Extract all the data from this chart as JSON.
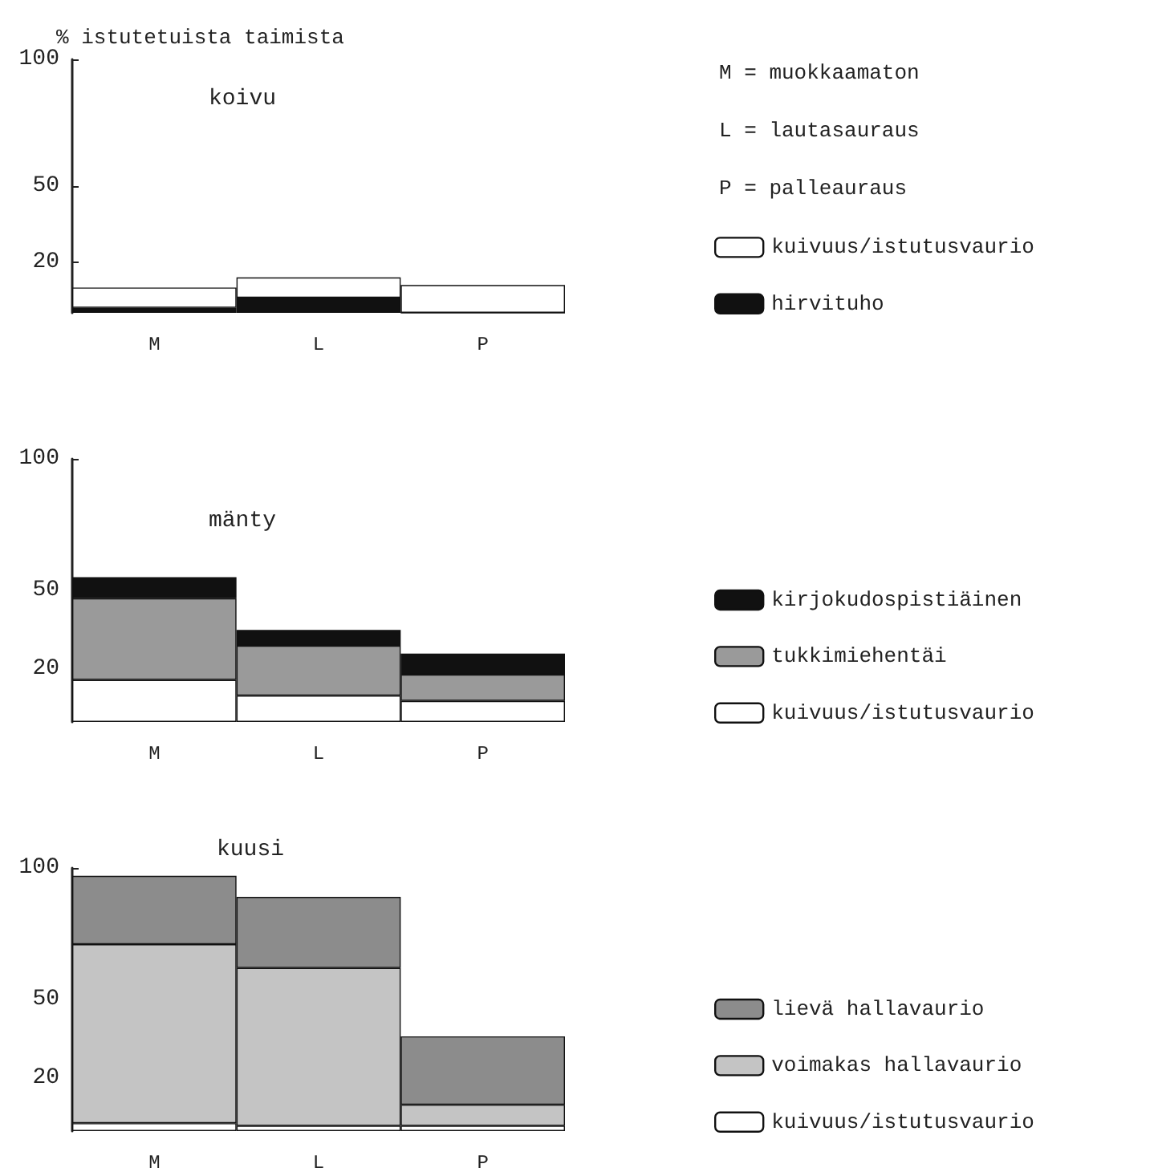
{
  "chart_data": [
    {
      "type": "bar",
      "stacked": true,
      "title": "koivu",
      "ylabel": "% istutetuista taimista",
      "categories": [
        "M",
        "L",
        "P"
      ],
      "ylim": [
        0,
        100
      ],
      "yticks": [
        20,
        50,
        100
      ],
      "grid": false,
      "legend": "right",
      "annotations": [
        "M = muokkaamaton",
        "L = lautasauraus",
        "P = palleauraus"
      ],
      "series": [
        {
          "name": "hirvituho",
          "color": "#111111",
          "values": [
            2,
            6,
            0
          ]
        },
        {
          "name": "kuivuus/istutusvaurio",
          "color": "#ffffff",
          "values": [
            8,
            8,
            11
          ]
        }
      ]
    },
    {
      "type": "bar",
      "stacked": true,
      "title": "mänty",
      "categories": [
        "M",
        "L",
        "P"
      ],
      "ylim": [
        0,
        100
      ],
      "yticks": [
        20,
        50,
        100
      ],
      "grid": false,
      "legend": "right",
      "series": [
        {
          "name": "kuivuus/istutusvaurio",
          "color": "#ffffff",
          "values": [
            16,
            10,
            8
          ]
        },
        {
          "name": "tukkimiehentäi",
          "color": "#9a9a9a",
          "values": [
            31,
            19,
            10
          ]
        },
        {
          "name": "kirjokudospistiäinen",
          "color": "#111111",
          "values": [
            8,
            6,
            8
          ]
        }
      ]
    },
    {
      "type": "bar",
      "stacked": true,
      "title": "kuusi",
      "categories": [
        "M",
        "L",
        "P"
      ],
      "ylim": [
        0,
        100
      ],
      "yticks": [
        20,
        50,
        100
      ],
      "grid": false,
      "legend": "right",
      "series": [
        {
          "name": "kuivuus/istutusvaurio",
          "color": "#ffffff",
          "values": [
            3,
            2,
            2
          ]
        },
        {
          "name": "voimakas hallavaurio",
          "color": "#c4c4c4",
          "values": [
            68,
            60,
            8
          ]
        },
        {
          "name": "lievä hallavaurio",
          "color": "#8c8c8c",
          "values": [
            26,
            27,
            26
          ]
        }
      ]
    }
  ]
}
